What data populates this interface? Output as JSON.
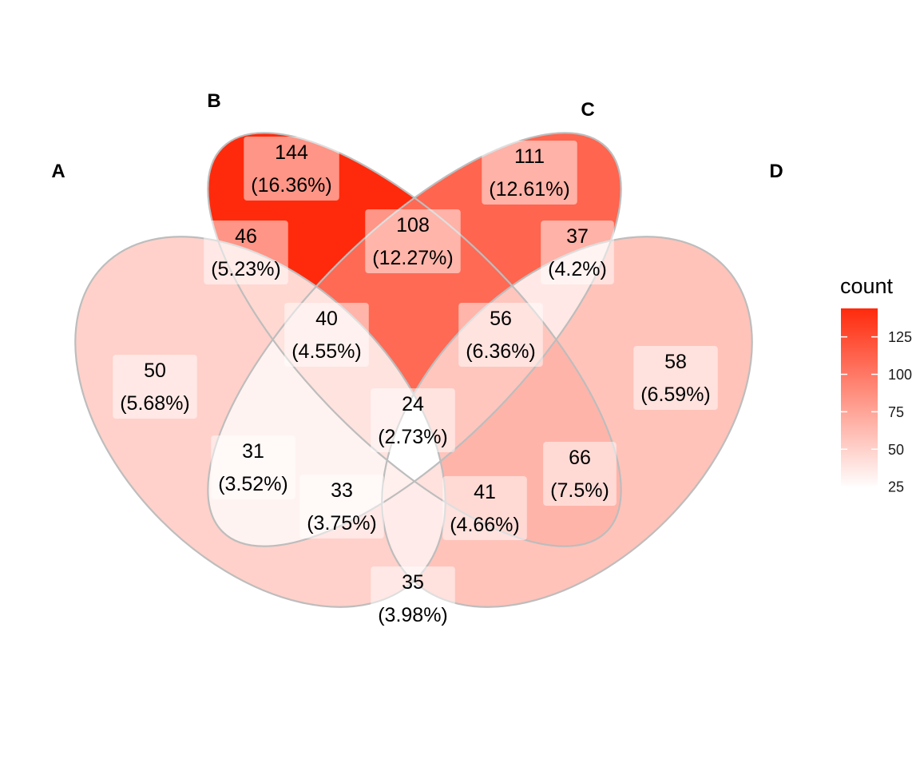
{
  "title": "",
  "sets": [
    {
      "id": "A",
      "label": "A"
    },
    {
      "id": "B",
      "label": "B"
    },
    {
      "id": "C",
      "label": "C"
    },
    {
      "id": "D",
      "label": "D"
    }
  ],
  "regions": [
    {
      "key": "A",
      "sets": [
        "A"
      ],
      "count": "50",
      "percent": "(5.68%)"
    },
    {
      "key": "B",
      "sets": [
        "B"
      ],
      "count": "144",
      "percent": "(16.36%)"
    },
    {
      "key": "C",
      "sets": [
        "C"
      ],
      "count": "111",
      "percent": "(12.61%)"
    },
    {
      "key": "D",
      "sets": [
        "D"
      ],
      "count": "58",
      "percent": "(6.59%)"
    },
    {
      "key": "AB",
      "sets": [
        "A",
        "B"
      ],
      "count": "46",
      "percent": "(5.23%)"
    },
    {
      "key": "AC",
      "sets": [
        "A",
        "C"
      ],
      "count": "31",
      "percent": "(3.52%)"
    },
    {
      "key": "AD",
      "sets": [
        "A",
        "D"
      ],
      "count": "35",
      "percent": "(3.98%)"
    },
    {
      "key": "BC",
      "sets": [
        "B",
        "C"
      ],
      "count": "108",
      "percent": "(12.27%)"
    },
    {
      "key": "BD",
      "sets": [
        "B",
        "D"
      ],
      "count": "66",
      "percent": "(7.5%)"
    },
    {
      "key": "CD",
      "sets": [
        "C",
        "D"
      ],
      "count": "37",
      "percent": "(4.2%)"
    },
    {
      "key": "ABC",
      "sets": [
        "A",
        "B",
        "C"
      ],
      "count": "40",
      "percent": "(4.55%)"
    },
    {
      "key": "ABD",
      "sets": [
        "A",
        "B",
        "D"
      ],
      "count": "41",
      "percent": "(4.66%)"
    },
    {
      "key": "ACD",
      "sets": [
        "A",
        "C",
        "D"
      ],
      "count": "33",
      "percent": "(3.75%)"
    },
    {
      "key": "BCD",
      "sets": [
        "B",
        "C",
        "D"
      ],
      "count": "56",
      "percent": "(6.36%)"
    },
    {
      "key": "ABCD",
      "sets": [
        "A",
        "B",
        "C",
        "D"
      ],
      "count": "24",
      "percent": "(2.73%)"
    }
  ],
  "legend": {
    "title": "count",
    "ticks": [
      "125",
      "100",
      "75",
      "50",
      "25"
    ],
    "range": [
      24,
      144
    ],
    "low_color": "#ffffff",
    "high_color": "#ff2a0c"
  },
  "colors": {
    "outline": "#bdbdbd",
    "label_box": "#ffffff"
  }
}
